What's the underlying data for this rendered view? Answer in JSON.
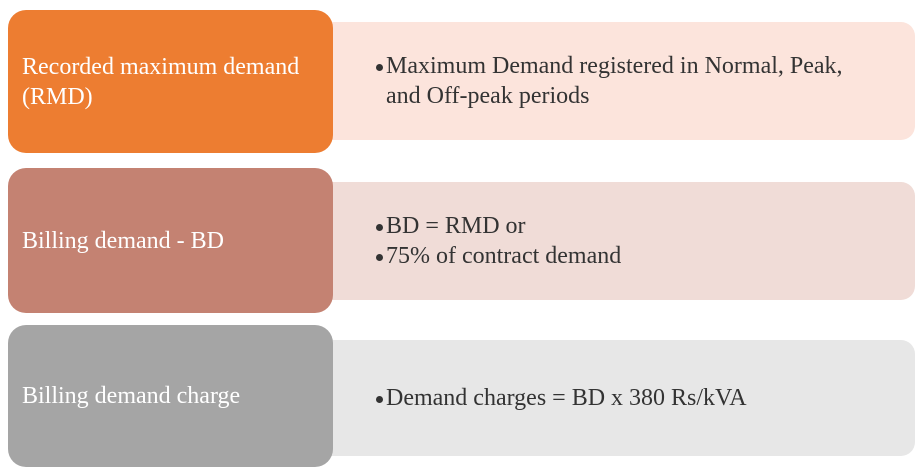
{
  "rows": [
    {
      "label": "Recorded maximum demand (RMD)",
      "bullets": [
        "Maximum Demand registered in Normal, Peak, and Off-peak periods"
      ]
    },
    {
      "label": "Billing demand - BD",
      "bullets": [
        "BD = RMD  or",
        "75% of contract demand"
      ]
    },
    {
      "label": "Billing demand charge",
      "bullets": [
        "Demand charges = BD x 380 Rs/kVA"
      ]
    }
  ]
}
